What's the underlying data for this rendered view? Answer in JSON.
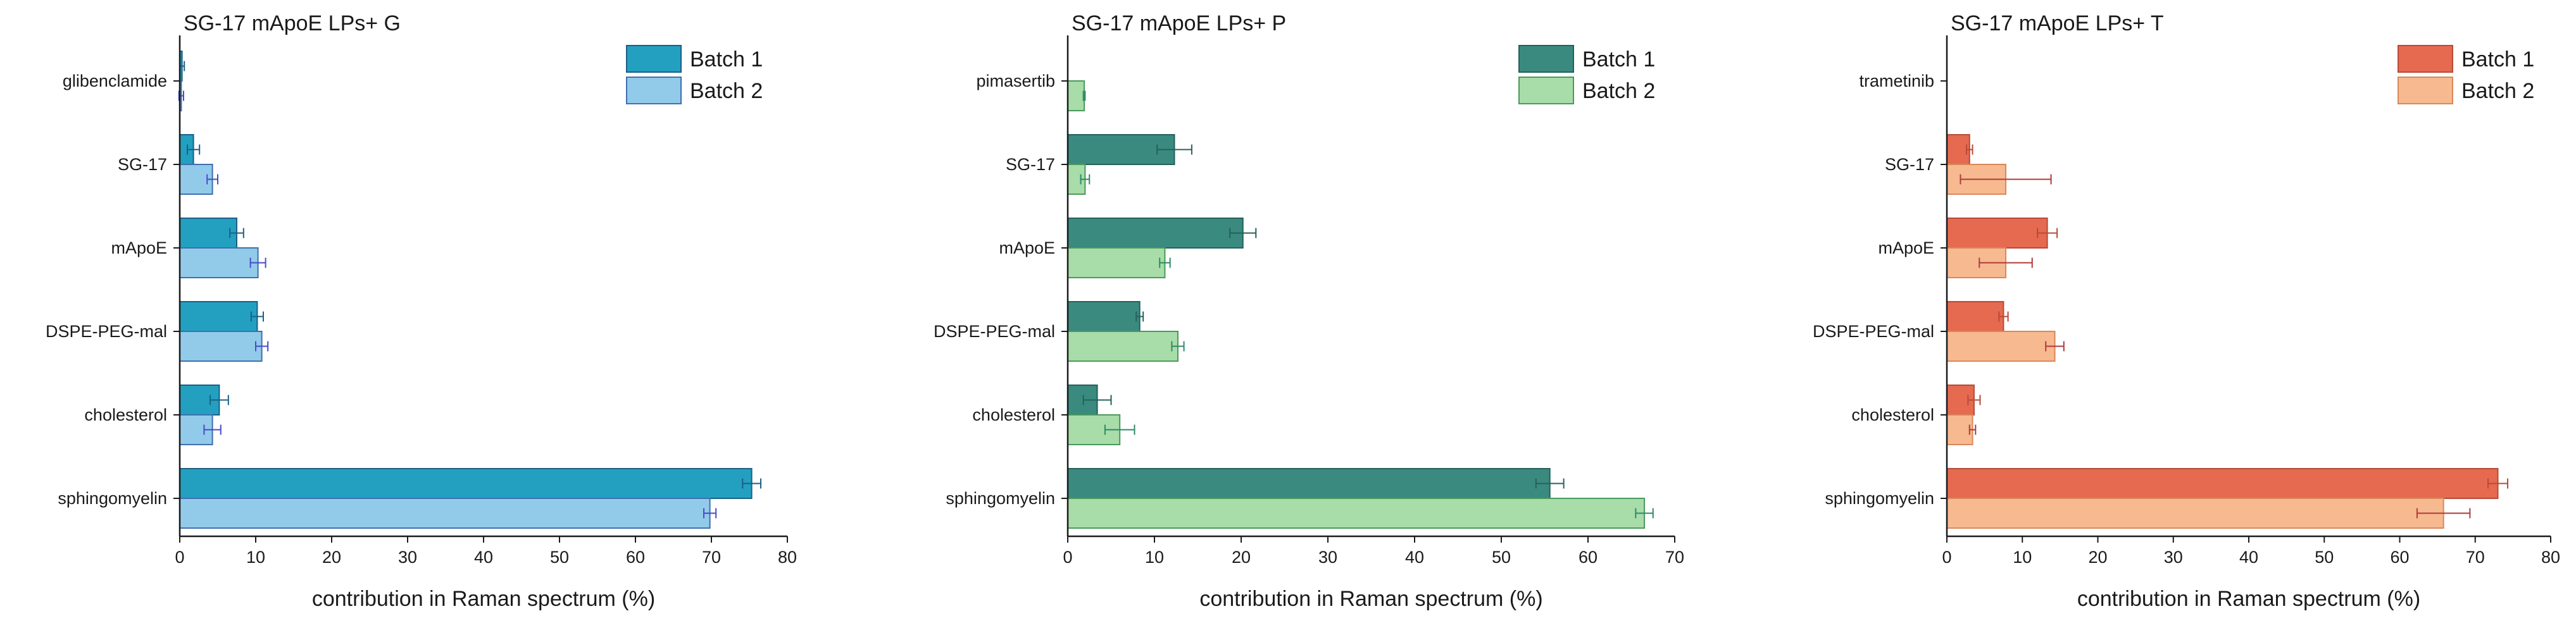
{
  "chart_data": [
    {
      "type": "bar",
      "orientation": "horizontal",
      "title": "SG-17 mApoE LPs+ G",
      "xlabel": "contribution in Raman spectrum (%)",
      "xlim": [
        0,
        80
      ],
      "xticks": [
        0,
        10,
        20,
        30,
        40,
        50,
        60,
        70,
        80
      ],
      "legend_position": "top-right",
      "categories": [
        "glibenclamide",
        "SG-17",
        "mApoE",
        "DSPE-PEG-mal",
        "cholesterol",
        "sphingomyelin"
      ],
      "series": [
        {
          "name": "Batch 1",
          "fill": "#23a0c0",
          "stroke": "#1b5f86",
          "err_color": "#1b5f86",
          "values": [
            0.3,
            1.8,
            7.5,
            10.2,
            5.2,
            75.3
          ],
          "errors": [
            0.3,
            0.8,
            0.9,
            0.8,
            1.2,
            1.2
          ]
        },
        {
          "name": "Batch 2",
          "fill": "#92cbea",
          "stroke": "#3f6fae",
          "err_color": "#4a4ac8",
          "values": [
            0.2,
            4.3,
            10.3,
            10.8,
            4.3,
            69.8
          ],
          "errors": [
            0.3,
            0.7,
            1.0,
            0.8,
            1.1,
            0.8
          ]
        }
      ]
    },
    {
      "type": "bar",
      "orientation": "horizontal",
      "title": "SG-17 mApoE LPs+ P",
      "xlabel": "contribution in Raman spectrum (%)",
      "xlim": [
        0,
        70
      ],
      "xticks": [
        0,
        10,
        20,
        30,
        40,
        50,
        60,
        70
      ],
      "legend_position": "top-right",
      "categories": [
        "pimasertib",
        "SG-17",
        "mApoE",
        "DSPE-PEG-mal",
        "cholesterol",
        "sphingomyelin"
      ],
      "series": [
        {
          "name": "Batch 1",
          "fill": "#3a8a80",
          "stroke": "#24615b",
          "err_color": "#24615b",
          "values": [
            0,
            12.3,
            20.2,
            8.3,
            3.4,
            55.6
          ],
          "errors": [
            0,
            2.0,
            1.5,
            0.4,
            1.6,
            1.6
          ]
        },
        {
          "name": "Batch 2",
          "fill": "#a8dca8",
          "stroke": "#4a9a5c",
          "err_color": "#2d8a6a",
          "values": [
            1.9,
            2.0,
            11.2,
            12.7,
            6.0,
            66.5
          ],
          "errors": [
            0.1,
            0.5,
            0.6,
            0.7,
            1.7,
            1.0
          ]
        }
      ]
    },
    {
      "type": "bar",
      "orientation": "horizontal",
      "title": "SG-17 mApoE LPs+ T",
      "xlabel": "contribution in Raman spectrum (%)",
      "xlim": [
        0,
        80
      ],
      "xticks": [
        0,
        10,
        20,
        30,
        40,
        50,
        60,
        70,
        80
      ],
      "legend_position": "top-right",
      "categories": [
        "trametinib",
        "SG-17",
        "mApoE",
        "DSPE-PEG-mal",
        "cholesterol",
        "sphingomyelin"
      ],
      "series": [
        {
          "name": "Batch 1",
          "fill": "#e56a50",
          "stroke": "#b84a38",
          "err_color": "#b84a38",
          "values": [
            0,
            3.0,
            13.3,
            7.5,
            3.6,
            73.0
          ],
          "errors": [
            0,
            0.4,
            1.3,
            0.6,
            0.8,
            1.3
          ]
        },
        {
          "name": "Batch 2",
          "fill": "#f7b990",
          "stroke": "#d9885a",
          "err_color": "#b03a3a",
          "values": [
            0,
            7.8,
            7.8,
            14.3,
            3.4,
            65.8
          ],
          "errors": [
            0,
            6.0,
            3.5,
            1.2,
            0.4,
            3.5
          ]
        }
      ]
    }
  ]
}
